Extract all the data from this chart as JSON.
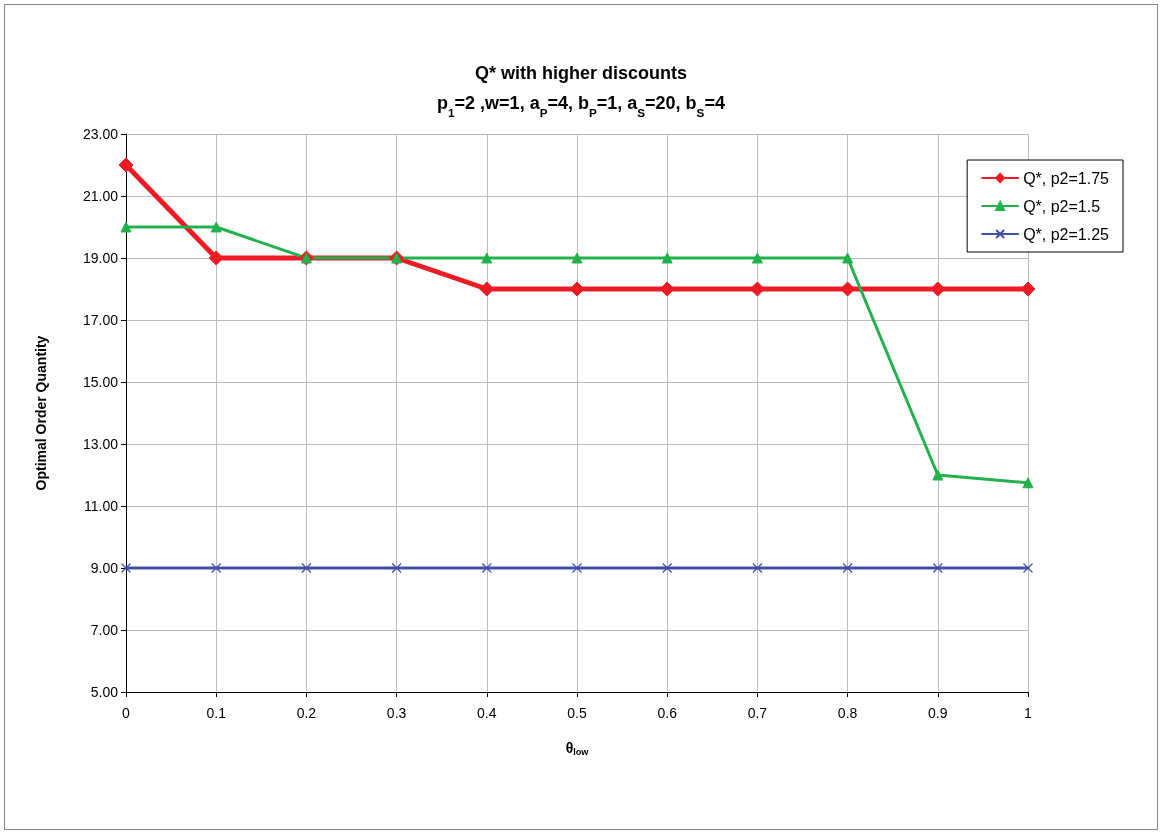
{
  "chart_data": {
    "type": "line",
    "title": "Q* with higher discounts",
    "subtitle": "p$_{1}$=2 ,w=1, a$_{P}$=4, b$_{P}$=1, a$_{S}$=20, b$_{S}$=4",
    "xlabel": "θ$_{low}$",
    "ylabel": "Optimal Order Quantity",
    "x": [
      0,
      0.1,
      0.2,
      0.3,
      0.4,
      0.5,
      0.6,
      0.7,
      0.8,
      0.9,
      1
    ],
    "series": [
      {
        "name": "Q*, p2=1.75",
        "color": "#ed1c24",
        "marker": "diamond",
        "values": [
          22,
          19,
          19,
          19,
          18,
          18,
          18,
          18,
          18,
          18,
          18
        ]
      },
      {
        "name": "Q*, p2=1.5",
        "color": "#22b14c",
        "marker": "triangle",
        "values": [
          20,
          20,
          19,
          19,
          19,
          19,
          19,
          19,
          19,
          12,
          11.75
        ]
      },
      {
        "name": "Q*, p2=1.25",
        "color": "#3f51a5",
        "marker": "cross",
        "values": [
          9,
          9,
          9,
          9,
          9,
          9,
          9,
          9,
          9,
          9,
          9
        ]
      }
    ],
    "xlim": [
      0,
      1
    ],
    "xticks": [
      0,
      0.1,
      0.2,
      0.3,
      0.4,
      0.5,
      0.6,
      0.7,
      0.8,
      0.9,
      1
    ],
    "ylim": [
      5,
      23
    ],
    "yticks": [
      {
        "value": 5,
        "label": "5.00"
      },
      {
        "value": 7,
        "label": "7.00"
      },
      {
        "value": 9,
        "label": "9.00"
      },
      {
        "value": 11,
        "label": "11.00"
      },
      {
        "value": 13,
        "label": "13.00"
      },
      {
        "value": 15,
        "label": "15.00"
      },
      {
        "value": 17,
        "label": "17.00"
      },
      {
        "value": 19,
        "label": "19.00"
      },
      {
        "value": 21,
        "label": "21.00"
      },
      {
        "value": 23,
        "label": "23.00"
      }
    ],
    "grid": true,
    "legend": "top right",
    "line_style": "solid"
  }
}
